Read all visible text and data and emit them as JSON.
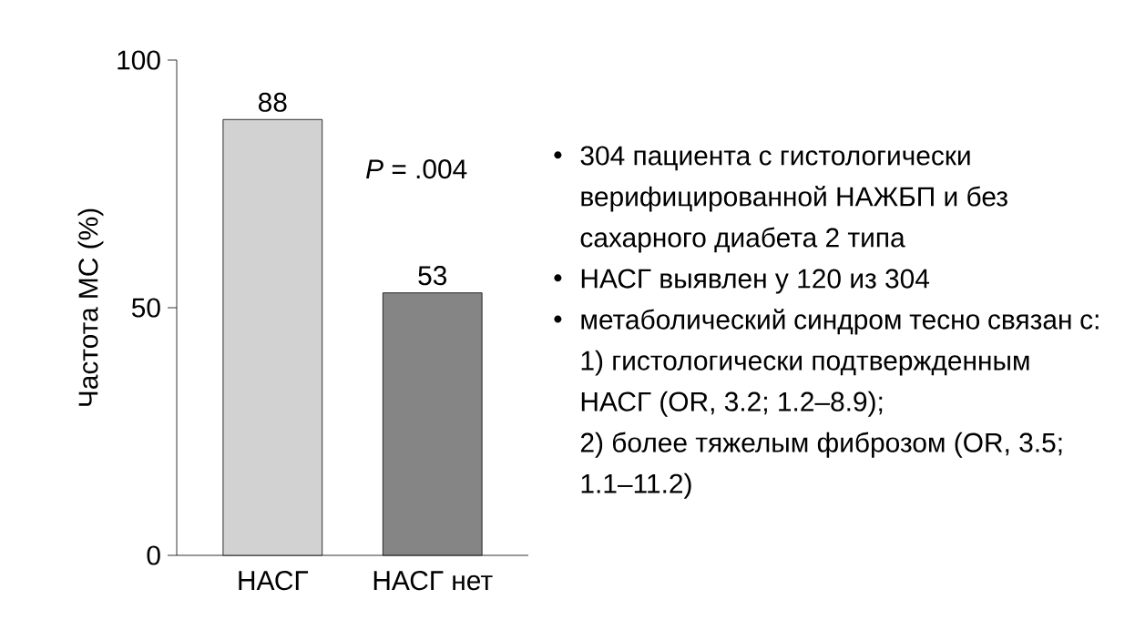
{
  "chart_data": {
    "type": "bar",
    "ylabel": "Частота МС (%)",
    "categories": [
      "НАСГ",
      "НАСГ нет"
    ],
    "values": [
      88,
      53
    ],
    "colors": [
      "#d2d2d2",
      "#858585"
    ],
    "data_labels": true,
    "ylim": [
      0,
      100
    ],
    "yticks": [
      0,
      50,
      100
    ],
    "annotations": [
      "*P* = .004",
      "304 пациента с гистологически верифицированной НАЖБП и без сахарного диабета 2 типа",
      "НАСГ выявлен у 120 из 304",
      "метаболический синдром тесно связан с:",
      "1) гистологически подтвержденным НАСГ (OR, 3.2; 1.2–8.9);",
      "2) более тяжелым фиброзом (OR, 3.5; 1.1–11.2)"
    ]
  }
}
